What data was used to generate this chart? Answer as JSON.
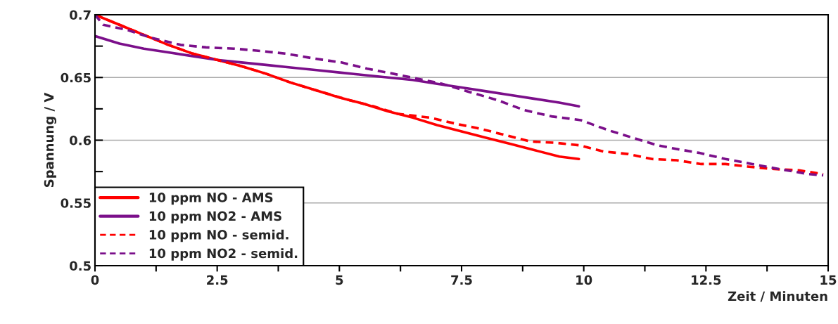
{
  "chart_data": {
    "type": "line",
    "xlabel": "Zeit / Minuten",
    "ylabel": "Spannung / V",
    "xlim": [
      0,
      15
    ],
    "ylim": [
      0.5,
      0.7
    ],
    "xticks": [
      0,
      {
        "value": 1.25,
        "label": null
      },
      2.5,
      {
        "value": 3.75,
        "label": null
      },
      5,
      {
        "value": 6.25,
        "label": null
      },
      7.5,
      {
        "value": 8.75,
        "label": null
      },
      10,
      {
        "value": 11.25,
        "label": null
      },
      12.5,
      {
        "value": 13.75,
        "label": null
      },
      15
    ],
    "yticks": [
      0.5,
      {
        "value": 0.525,
        "label": null
      },
      0.55,
      {
        "value": 0.575,
        "label": null
      },
      0.6,
      {
        "value": 0.625,
        "label": null
      },
      0.65,
      {
        "value": 0.675,
        "label": null
      },
      0.7
    ],
    "grid": "y",
    "legend": "bottom left",
    "series": [
      {
        "name": "10 ppm NO - AMS",
        "color": "#ff0000",
        "line_style": "solid",
        "x": [
          0,
          0.5,
          1,
          1.5,
          2,
          2.5,
          3,
          3.5,
          4,
          4.5,
          5,
          5.5,
          6,
          6.5,
          7,
          7.5,
          8,
          8.5,
          9,
          9.5,
          9.9
        ],
        "values": [
          0.7,
          0.692,
          0.684,
          0.676,
          0.669,
          0.664,
          0.659,
          0.653,
          0.646,
          0.64,
          0.634,
          0.629,
          0.623,
          0.618,
          0.612,
          0.607,
          0.602,
          0.597,
          0.592,
          0.587,
          0.585
        ]
      },
      {
        "name": "10 ppm NO2 - AMS",
        "color": "#7b0f8a",
        "line_style": "solid",
        "x": [
          0,
          0.5,
          1,
          1.5,
          2,
          2.5,
          3,
          3.5,
          4,
          4.5,
          5,
          5.5,
          6,
          6.5,
          7,
          7.5,
          8,
          8.5,
          9,
          9.5,
          9.9
        ],
        "values": [
          0.683,
          0.677,
          0.673,
          0.67,
          0.667,
          0.664,
          0.662,
          0.66,
          0.658,
          0.656,
          0.654,
          0.652,
          0.65,
          0.648,
          0.645,
          0.642,
          0.639,
          0.636,
          0.633,
          0.63,
          0.627
        ]
      },
      {
        "name": "10 ppm NO - semid.",
        "color": "#ff0000",
        "line_style": "dashed",
        "x": [
          0,
          0.5,
          1,
          1.5,
          2,
          2.5,
          3,
          3.5,
          4,
          4.5,
          5.2,
          5.7,
          6.2,
          6.85,
          7.4,
          7.9,
          8.4,
          8.9,
          9.4,
          9.9,
          10.4,
          10.9,
          11.4,
          11.9,
          12.4,
          12.9,
          13.35,
          13.9,
          14.4,
          14.9
        ],
        "values": [
          0.7,
          0.692,
          0.684,
          0.676,
          0.669,
          0.664,
          0.659,
          0.653,
          0.646,
          0.64,
          0.632,
          0.627,
          0.621,
          0.618,
          0.613,
          0.609,
          0.604,
          0.599,
          0.598,
          0.596,
          0.591,
          0.589,
          0.585,
          0.584,
          0.581,
          0.581,
          0.579,
          0.577,
          0.576,
          0.573
        ]
      },
      {
        "name": "10 ppm NO2 - semid.",
        "color": "#7b0f8a",
        "line_style": "dashed",
        "x": [
          0,
          0.17,
          0.65,
          1.12,
          1.75,
          2.27,
          2.85,
          3.42,
          3.9,
          4.5,
          5.04,
          5.57,
          6.1,
          6.6,
          7.1,
          7.7,
          8.23,
          8.78,
          9.34,
          9.94,
          10.5,
          11.0,
          11.5,
          11.9,
          12.35,
          12.9,
          13.45,
          14.0,
          14.6,
          14.9
        ],
        "values": [
          0.7,
          0.692,
          0.688,
          0.682,
          0.676,
          0.674,
          0.673,
          0.671,
          0.669,
          0.665,
          0.662,
          0.657,
          0.653,
          0.649,
          0.645,
          0.638,
          0.632,
          0.624,
          0.619,
          0.616,
          0.608,
          0.602,
          0.596,
          0.593,
          0.59,
          0.585,
          0.581,
          0.577,
          0.573,
          0.572
        ]
      }
    ]
  }
}
